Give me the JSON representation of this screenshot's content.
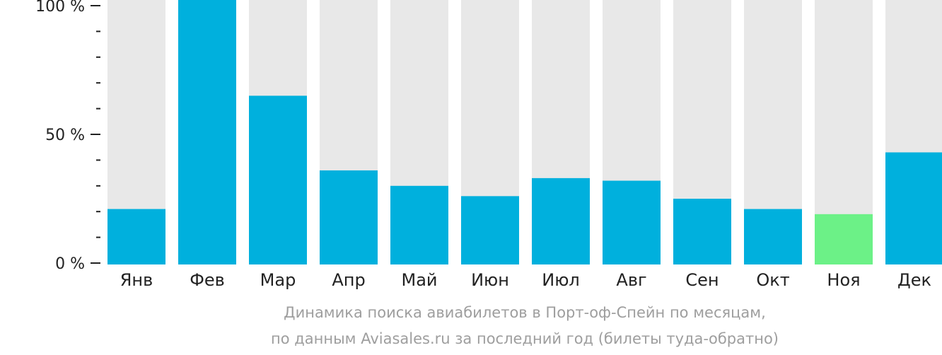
{
  "chart_data": {
    "type": "bar",
    "categories": [
      "Янв",
      "Фев",
      "Мар",
      "Апр",
      "Май",
      "Июн",
      "Июл",
      "Авг",
      "Сен",
      "Окт",
      "Ноя",
      "Дек"
    ],
    "values": [
      21,
      100,
      65,
      36,
      30,
      26,
      33,
      32,
      25,
      21,
      19,
      43
    ],
    "ylim": [
      0,
      100
    ],
    "yticks": [
      {
        "value": 100,
        "label": "100 %"
      },
      {
        "value": 50,
        "label": "50 %"
      },
      {
        "value": 0,
        "label": "0 %"
      }
    ],
    "ymajor_step": 50,
    "yminor_step": 10,
    "highlight_index": 10,
    "colors": {
      "bar": "#00b0dd",
      "highlight": "#6cf187",
      "background_bar": "#e8e8e8",
      "axis": "#222222"
    },
    "caption_line1": "Динамика поиска авиабилетов в Порт-оф-Спейн по месяцам,",
    "caption_line2": "по данным Aviasales.ru за последний год (билеты туда-обратно)"
  }
}
